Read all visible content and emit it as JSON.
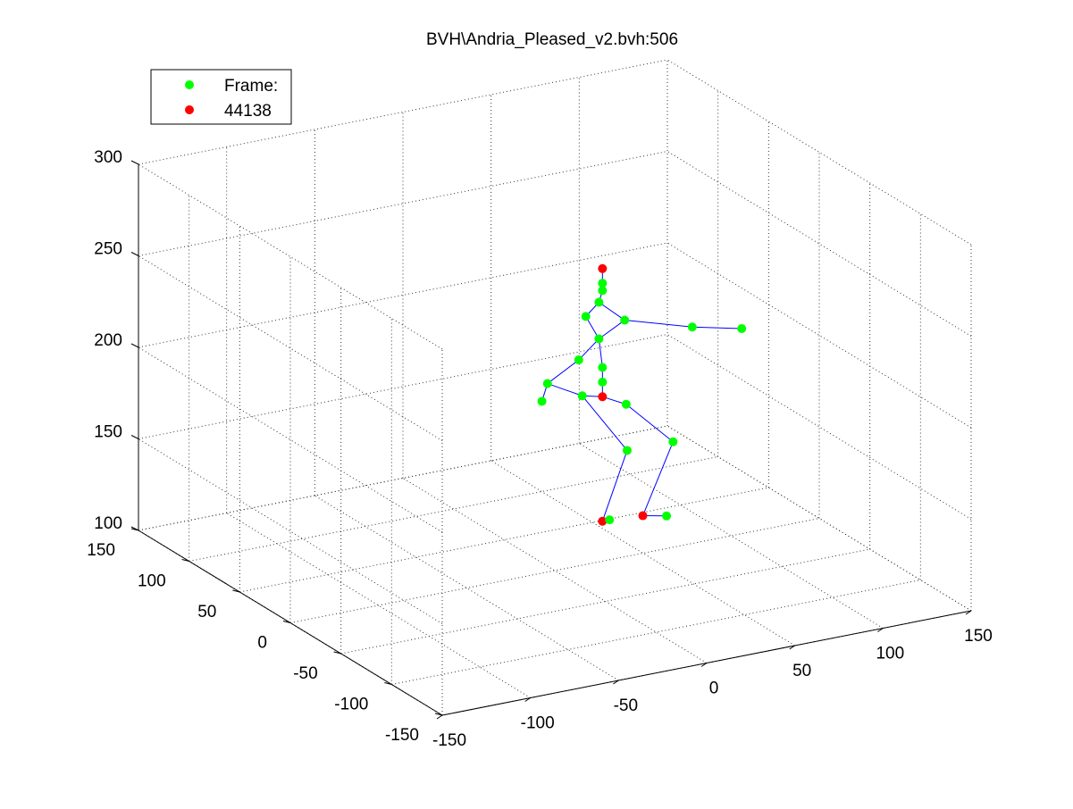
{
  "figure": {
    "title": "BVH\\Andria_Pleased_v2.bvh:506"
  },
  "legend": {
    "entries": [
      {
        "label": "Frame:",
        "color": "#00ff00"
      },
      {
        "label": "44138",
        "color": "#ff0000"
      }
    ]
  },
  "chart_data": {
    "type": "scatter",
    "projection": "3d",
    "title": "BVH\\Andria_Pleased_v2.bvh:506",
    "xlim": [
      -150,
      150
    ],
    "ylim": [
      -150,
      150
    ],
    "zlim": [
      100,
      300
    ],
    "x_ticks": [
      "-150",
      "-100",
      "-50",
      "0",
      "50",
      "100",
      "150"
    ],
    "y_ticks": [
      "-150",
      "-100",
      "-50",
      "0",
      "50",
      "100",
      "150"
    ],
    "z_ticks": [
      "100",
      "150",
      "200",
      "250",
      "300"
    ],
    "grid": true,
    "legend_location": "top-left",
    "colors": {
      "joint": "#00ff00",
      "end_site": "#ff0000",
      "bone": "#0000ff"
    },
    "x_values_units_note": "",
    "series": [
      {
        "name": "Frame:",
        "color": "#00ff00",
        "role": "joints"
      },
      {
        "name": "44138",
        "color": "#ff0000",
        "role": "end-sites"
      }
    ],
    "joints": [
      {
        "id": "head-top",
        "x": 50,
        "y": 40,
        "z": 242,
        "end": true
      },
      {
        "id": "head",
        "x": 50,
        "y": 40,
        "z": 234
      },
      {
        "id": "neck-a",
        "x": 50,
        "y": 40,
        "z": 230
      },
      {
        "id": "neck-b",
        "x": 48,
        "y": 40,
        "z": 224
      },
      {
        "id": "r-collar",
        "x": 44,
        "y": 46,
        "z": 215
      },
      {
        "id": "l-collar",
        "x": 58,
        "y": 32,
        "z": 215
      },
      {
        "id": "spine-3",
        "x": 48,
        "y": 40,
        "z": 204
      },
      {
        "id": "r-shoulder",
        "x": 40,
        "y": 46,
        "z": 192
      },
      {
        "id": "spine-2",
        "x": 50,
        "y": 40,
        "z": 188
      },
      {
        "id": "spine-1",
        "x": 50,
        "y": 40,
        "z": 180
      },
      {
        "id": "hips",
        "x": 50,
        "y": 40,
        "z": 172,
        "end": true
      },
      {
        "id": "r-hip",
        "x": 42,
        "y": 46,
        "z": 172
      },
      {
        "id": "l-hip",
        "x": 60,
        "y": 34,
        "z": 168
      },
      {
        "id": "r-elbow",
        "x": 28,
        "y": 56,
        "z": 178
      },
      {
        "id": "r-hand",
        "x": 26,
        "y": 58,
        "z": 168
      },
      {
        "id": "l-elbow",
        "x": 86,
        "y": 14,
        "z": 212
      },
      {
        "id": "l-hand",
        "x": 106,
        "y": 0,
        "z": 212
      },
      {
        "id": "r-knee",
        "x": 64,
        "y": 40,
        "z": 140
      },
      {
        "id": "l-knee",
        "x": 82,
        "y": 26,
        "z": 146
      },
      {
        "id": "r-ankle",
        "x": 50,
        "y": 40,
        "z": 104,
        "end": true
      },
      {
        "id": "r-toe",
        "x": 54,
        "y": 40,
        "z": 104
      },
      {
        "id": "l-ankle",
        "x": 66,
        "y": 28,
        "z": 108,
        "end": true
      },
      {
        "id": "l-toe",
        "x": 76,
        "y": 22,
        "z": 108
      }
    ],
    "bones": [
      [
        "head-top",
        "head"
      ],
      [
        "head",
        "neck-a"
      ],
      [
        "neck-a",
        "neck-b"
      ],
      [
        "neck-b",
        "r-collar"
      ],
      [
        "neck-b",
        "l-collar"
      ],
      [
        "r-collar",
        "spine-3"
      ],
      [
        "l-collar",
        "spine-3"
      ],
      [
        "spine-3",
        "spine-2"
      ],
      [
        "spine-3",
        "r-shoulder"
      ],
      [
        "spine-2",
        "spine-1"
      ],
      [
        "spine-1",
        "hips"
      ],
      [
        "hips",
        "r-hip"
      ],
      [
        "hips",
        "l-hip"
      ],
      [
        "r-shoulder",
        "r-elbow"
      ],
      [
        "r-elbow",
        "r-hand"
      ],
      [
        "r-hip",
        "r-elbow"
      ],
      [
        "l-collar",
        "l-elbow"
      ],
      [
        "l-elbow",
        "l-hand"
      ],
      [
        "r-hip",
        "r-knee"
      ],
      [
        "r-knee",
        "r-ankle"
      ],
      [
        "r-ankle",
        "r-toe"
      ],
      [
        "l-hip",
        "l-knee"
      ],
      [
        "l-knee",
        "l-ankle"
      ],
      [
        "l-ankle",
        "l-toe"
      ]
    ]
  }
}
